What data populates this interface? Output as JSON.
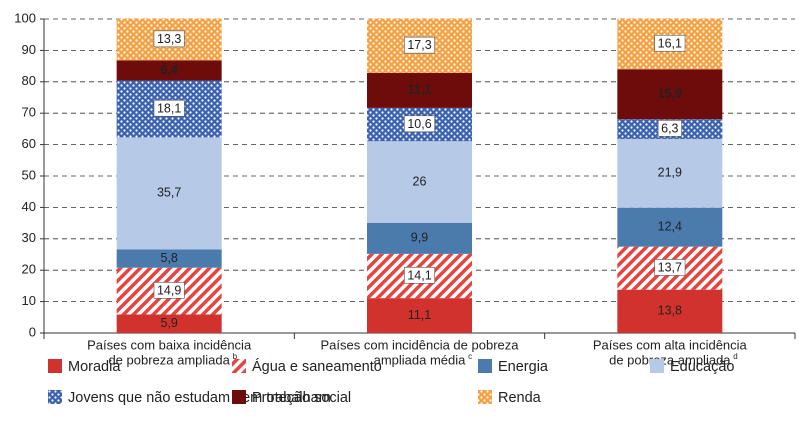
{
  "chart_data": {
    "type": "stacked_bar",
    "categories": [
      [
        "Países com baixa incidência",
        "de pobreza ampliada"
      ],
      [
        "Países com incidência de pobreza",
        "ampliada média"
      ],
      [
        "Países com alta incidência",
        "de pobreza ampliada"
      ]
    ],
    "category_notes": [
      "b",
      "c",
      "d"
    ],
    "series": [
      {
        "name": "Moradia",
        "color": "#d2322d",
        "values": [
          5.9,
          11.1,
          13.8
        ],
        "value_labels": [
          "5,9",
          "11,1",
          "13,8"
        ]
      },
      {
        "name": "Água e saneamento",
        "color": "#e8443f",
        "pattern": "hatch",
        "values": [
          14.9,
          14.1,
          13.7
        ],
        "value_labels": [
          "14,9",
          "14,1",
          "13,7"
        ]
      },
      {
        "name": "Energia",
        "color": "#4a7bac",
        "values": [
          5.8,
          9.9,
          12.4
        ],
        "value_labels": [
          "5,8",
          "9,9",
          "12,4"
        ]
      },
      {
        "name": "Educação",
        "color": "#b6c9e6",
        "values": [
          35.7,
          26,
          21.9
        ],
        "value_labels": [
          "35,7",
          "26",
          "21,9"
        ]
      },
      {
        "name": "Jovens que não estudam nem trabalham",
        "color": "#3b62ae",
        "pattern": "dots",
        "values": [
          18.1,
          10.6,
          6.3
        ],
        "value_labels": [
          "18,1",
          "10,6",
          "6,3"
        ]
      },
      {
        "name": "Proteção social",
        "color": "#6e0b0b",
        "values": [
          6.4,
          11.1,
          15.9
        ],
        "value_labels": [
          "6,4",
          "11,1",
          "15,9"
        ]
      },
      {
        "name": "Renda",
        "color": "#f5a142",
        "pattern": "dots",
        "values": [
          13.3,
          17.3,
          16.1
        ],
        "value_labels": [
          "13,3",
          "17,3",
          "16,1"
        ]
      }
    ],
    "ylim": [
      0,
      100
    ],
    "yticks": [
      0,
      10,
      20,
      30,
      40,
      50,
      60,
      70,
      80,
      90,
      100
    ],
    "grid": true
  }
}
